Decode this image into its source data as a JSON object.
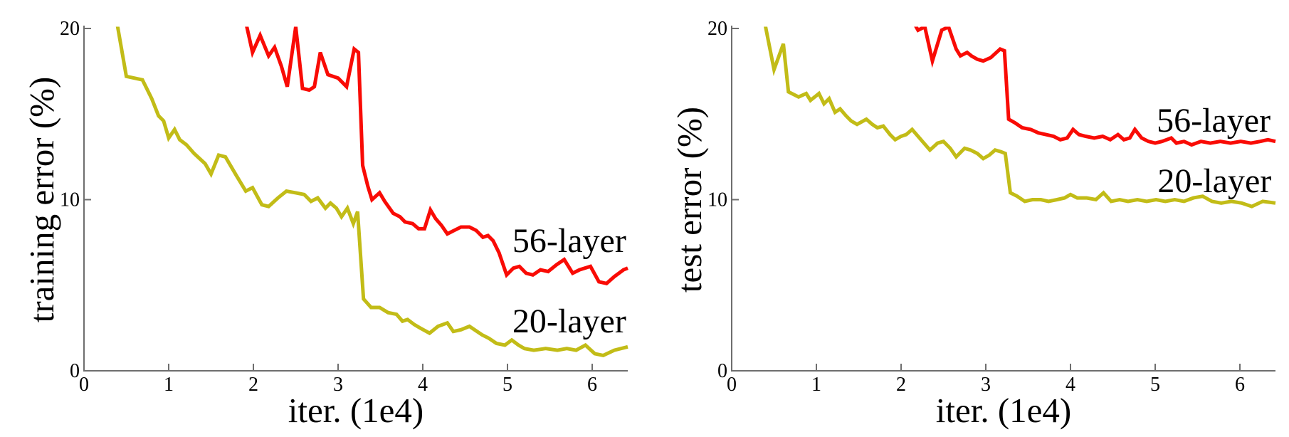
{
  "figure": {
    "background": "#ffffff",
    "axis_color": "#6e6e6e",
    "text_color": "#000000",
    "series_colors": {
      "layer56": "#f90b05",
      "layer20": "#c2bc17"
    }
  },
  "chart_data": [
    {
      "type": "line",
      "title": "",
      "xlabel": "iter. (1e4)",
      "ylabel": "training error (%)",
      "xlim": [
        0,
        6.42
      ],
      "ylim": [
        0,
        20
      ],
      "xticks": [
        0,
        1,
        2,
        3,
        4,
        5,
        6
      ],
      "yticks": [
        0,
        10,
        20
      ],
      "grid": false,
      "legend": "inline-annotations",
      "annotations": [
        {
          "text": "56-layer",
          "x": 5.73,
          "y": 7.65
        },
        {
          "text": "20-layer",
          "x": 5.73,
          "y": 2.95
        }
      ],
      "series": [
        {
          "name": "56-layer",
          "color_key": "layer56",
          "points": [
            [
              1.9,
              20.6
            ],
            [
              1.99,
              18.6
            ],
            [
              2.08,
              19.6
            ],
            [
              2.18,
              18.4
            ],
            [
              2.25,
              18.9
            ],
            [
              2.33,
              17.8
            ],
            [
              2.4,
              16.6
            ],
            [
              2.5,
              20.1
            ],
            [
              2.58,
              16.5
            ],
            [
              2.66,
              16.4
            ],
            [
              2.72,
              16.6
            ],
            [
              2.79,
              18.6
            ],
            [
              2.88,
              17.3
            ],
            [
              3.0,
              17.1
            ],
            [
              3.1,
              16.6
            ],
            [
              3.19,
              18.8
            ],
            [
              3.24,
              18.6
            ],
            [
              3.29,
              12.0
            ],
            [
              3.35,
              10.8
            ],
            [
              3.4,
              10.0
            ],
            [
              3.49,
              10.4
            ],
            [
              3.55,
              9.9
            ],
            [
              3.65,
              9.2
            ],
            [
              3.73,
              9.0
            ],
            [
              3.79,
              8.7
            ],
            [
              3.88,
              8.6
            ],
            [
              3.95,
              8.3
            ],
            [
              4.02,
              8.3
            ],
            [
              4.09,
              9.4
            ],
            [
              4.15,
              8.9
            ],
            [
              4.22,
              8.5
            ],
            [
              4.29,
              8.0
            ],
            [
              4.37,
              8.2
            ],
            [
              4.45,
              8.4
            ],
            [
              4.55,
              8.4
            ],
            [
              4.63,
              8.2
            ],
            [
              4.71,
              7.8
            ],
            [
              4.77,
              7.9
            ],
            [
              4.83,
              7.6
            ],
            [
              4.9,
              6.9
            ],
            [
              4.99,
              5.6
            ],
            [
              5.07,
              6.0
            ],
            [
              5.14,
              6.1
            ],
            [
              5.22,
              5.7
            ],
            [
              5.3,
              5.6
            ],
            [
              5.39,
              5.9
            ],
            [
              5.48,
              5.8
            ],
            [
              5.58,
              6.2
            ],
            [
              5.67,
              6.5
            ],
            [
              5.77,
              5.7
            ],
            [
              5.85,
              5.9
            ],
            [
              5.98,
              6.1
            ],
            [
              6.08,
              5.2
            ],
            [
              6.17,
              5.1
            ],
            [
              6.26,
              5.5
            ],
            [
              6.37,
              5.9
            ],
            [
              6.42,
              6.0
            ]
          ]
        },
        {
          "name": "20-layer",
          "color_key": "layer20",
          "points": [
            [
              0.38,
              20.6
            ],
            [
              0.5,
              17.2
            ],
            [
              0.69,
              17.0
            ],
            [
              0.8,
              15.9
            ],
            [
              0.88,
              14.9
            ],
            [
              0.94,
              14.6
            ],
            [
              1.0,
              13.6
            ],
            [
              1.07,
              14.1
            ],
            [
              1.13,
              13.5
            ],
            [
              1.21,
              13.2
            ],
            [
              1.3,
              12.7
            ],
            [
              1.43,
              12.1
            ],
            [
              1.5,
              11.5
            ],
            [
              1.59,
              12.6
            ],
            [
              1.67,
              12.5
            ],
            [
              1.8,
              11.4
            ],
            [
              1.91,
              10.5
            ],
            [
              1.99,
              10.7
            ],
            [
              2.1,
              9.7
            ],
            [
              2.18,
              9.6
            ],
            [
              2.29,
              10.1
            ],
            [
              2.39,
              10.5
            ],
            [
              2.5,
              10.4
            ],
            [
              2.6,
              10.3
            ],
            [
              2.68,
              9.9
            ],
            [
              2.76,
              10.1
            ],
            [
              2.85,
              9.5
            ],
            [
              2.91,
              9.8
            ],
            [
              2.98,
              9.5
            ],
            [
              3.04,
              9.0
            ],
            [
              3.11,
              9.5
            ],
            [
              3.18,
              8.6
            ],
            [
              3.23,
              9.3
            ],
            [
              3.3,
              4.2
            ],
            [
              3.39,
              3.7
            ],
            [
              3.49,
              3.7
            ],
            [
              3.59,
              3.4
            ],
            [
              3.69,
              3.3
            ],
            [
              3.76,
              2.9
            ],
            [
              3.82,
              3.0
            ],
            [
              3.9,
              2.7
            ],
            [
              3.97,
              2.5
            ],
            [
              4.08,
              2.2
            ],
            [
              4.18,
              2.6
            ],
            [
              4.29,
              2.8
            ],
            [
              4.36,
              2.3
            ],
            [
              4.45,
              2.4
            ],
            [
              4.55,
              2.6
            ],
            [
              4.7,
              2.1
            ],
            [
              4.78,
              1.9
            ],
            [
              4.87,
              1.6
            ],
            [
              4.97,
              1.5
            ],
            [
              5.05,
              1.8
            ],
            [
              5.13,
              1.5
            ],
            [
              5.2,
              1.3
            ],
            [
              5.31,
              1.2
            ],
            [
              5.45,
              1.3
            ],
            [
              5.59,
              1.2
            ],
            [
              5.7,
              1.3
            ],
            [
              5.81,
              1.2
            ],
            [
              5.92,
              1.5
            ],
            [
              6.03,
              1.0
            ],
            [
              6.13,
              0.9
            ],
            [
              6.26,
              1.2
            ],
            [
              6.42,
              1.4
            ]
          ]
        }
      ]
    },
    {
      "type": "line",
      "title": "",
      "xlabel": "iter. (1e4)",
      "ylabel": "test error (%)",
      "xlim": [
        0,
        6.42
      ],
      "ylim": [
        0,
        20
      ],
      "xticks": [
        0,
        1,
        2,
        3,
        4,
        5,
        6
      ],
      "yticks": [
        0,
        10,
        20
      ],
      "grid": false,
      "legend": "inline-annotations",
      "annotations": [
        {
          "text": "56-layer",
          "x": 5.69,
          "y": 14.68
        },
        {
          "text": "20-layer",
          "x": 5.7,
          "y": 11.14
        }
      ],
      "series": [
        {
          "name": "56-layer",
          "color_key": "layer56",
          "points": [
            [
              2.12,
              20.6
            ],
            [
              2.2,
              19.9
            ],
            [
              2.28,
              20.1
            ],
            [
              2.37,
              18.1
            ],
            [
              2.48,
              19.9
            ],
            [
              2.56,
              20.1
            ],
            [
              2.65,
              18.8
            ],
            [
              2.7,
              18.4
            ],
            [
              2.78,
              18.6
            ],
            [
              2.83,
              18.4
            ],
            [
              2.9,
              18.2
            ],
            [
              2.97,
              18.1
            ],
            [
              3.06,
              18.3
            ],
            [
              3.17,
              18.8
            ],
            [
              3.22,
              18.7
            ],
            [
              3.27,
              14.7
            ],
            [
              3.34,
              14.5
            ],
            [
              3.43,
              14.2
            ],
            [
              3.53,
              14.1
            ],
            [
              3.62,
              13.9
            ],
            [
              3.71,
              13.8
            ],
            [
              3.8,
              13.7
            ],
            [
              3.88,
              13.5
            ],
            [
              3.96,
              13.6
            ],
            [
              4.03,
              14.1
            ],
            [
              4.1,
              13.8
            ],
            [
              4.18,
              13.7
            ],
            [
              4.28,
              13.6
            ],
            [
              4.38,
              13.7
            ],
            [
              4.47,
              13.5
            ],
            [
              4.56,
              13.8
            ],
            [
              4.63,
              13.5
            ],
            [
              4.7,
              13.6
            ],
            [
              4.76,
              14.1
            ],
            [
              4.84,
              13.6
            ],
            [
              4.92,
              13.4
            ],
            [
              5.0,
              13.3
            ],
            [
              5.08,
              13.4
            ],
            [
              5.19,
              13.6
            ],
            [
              5.25,
              13.3
            ],
            [
              5.34,
              13.4
            ],
            [
              5.43,
              13.2
            ],
            [
              5.54,
              13.4
            ],
            [
              5.65,
              13.3
            ],
            [
              5.77,
              13.4
            ],
            [
              5.89,
              13.3
            ],
            [
              6.01,
              13.4
            ],
            [
              6.13,
              13.3
            ],
            [
              6.24,
              13.4
            ],
            [
              6.33,
              13.5
            ],
            [
              6.42,
              13.4
            ]
          ]
        },
        {
          "name": "20-layer",
          "color_key": "layer20",
          "points": [
            [
              0.38,
              20.6
            ],
            [
              0.5,
              17.6
            ],
            [
              0.61,
              19.1
            ],
            [
              0.67,
              16.3
            ],
            [
              0.79,
              16.0
            ],
            [
              0.88,
              16.2
            ],
            [
              0.93,
              15.8
            ],
            [
              1.03,
              16.2
            ],
            [
              1.09,
              15.6
            ],
            [
              1.15,
              15.9
            ],
            [
              1.22,
              15.1
            ],
            [
              1.28,
              15.3
            ],
            [
              1.35,
              14.9
            ],
            [
              1.41,
              14.6
            ],
            [
              1.48,
              14.4
            ],
            [
              1.59,
              14.7
            ],
            [
              1.66,
              14.4
            ],
            [
              1.72,
              14.2
            ],
            [
              1.79,
              14.3
            ],
            [
              1.87,
              13.8
            ],
            [
              1.93,
              13.5
            ],
            [
              2.0,
              13.7
            ],
            [
              2.06,
              13.8
            ],
            [
              2.13,
              14.1
            ],
            [
              2.2,
              13.7
            ],
            [
              2.27,
              13.3
            ],
            [
              2.34,
              12.9
            ],
            [
              2.43,
              13.3
            ],
            [
              2.5,
              13.4
            ],
            [
              2.58,
              13.0
            ],
            [
              2.65,
              12.5
            ],
            [
              2.75,
              13.0
            ],
            [
              2.82,
              12.9
            ],
            [
              2.9,
              12.7
            ],
            [
              2.97,
              12.4
            ],
            [
              3.04,
              12.6
            ],
            [
              3.11,
              12.9
            ],
            [
              3.18,
              12.8
            ],
            [
              3.23,
              12.7
            ],
            [
              3.29,
              10.4
            ],
            [
              3.37,
              10.2
            ],
            [
              3.46,
              9.9
            ],
            [
              3.55,
              10.0
            ],
            [
              3.65,
              10.0
            ],
            [
              3.74,
              9.9
            ],
            [
              3.84,
              10.0
            ],
            [
              3.93,
              10.1
            ],
            [
              4.0,
              10.3
            ],
            [
              4.08,
              10.1
            ],
            [
              4.19,
              10.1
            ],
            [
              4.3,
              10.0
            ],
            [
              4.39,
              10.4
            ],
            [
              4.48,
              9.9
            ],
            [
              4.58,
              10.0
            ],
            [
              4.68,
              9.9
            ],
            [
              4.79,
              10.0
            ],
            [
              4.9,
              9.9
            ],
            [
              5.01,
              10.0
            ],
            [
              5.12,
              9.9
            ],
            [
              5.23,
              10.0
            ],
            [
              5.34,
              9.9
            ],
            [
              5.45,
              10.1
            ],
            [
              5.56,
              10.2
            ],
            [
              5.67,
              9.9
            ],
            [
              5.78,
              9.8
            ],
            [
              5.9,
              9.9
            ],
            [
              6.02,
              9.8
            ],
            [
              6.14,
              9.6
            ],
            [
              6.27,
              9.9
            ],
            [
              6.42,
              9.8
            ]
          ]
        }
      ]
    }
  ]
}
